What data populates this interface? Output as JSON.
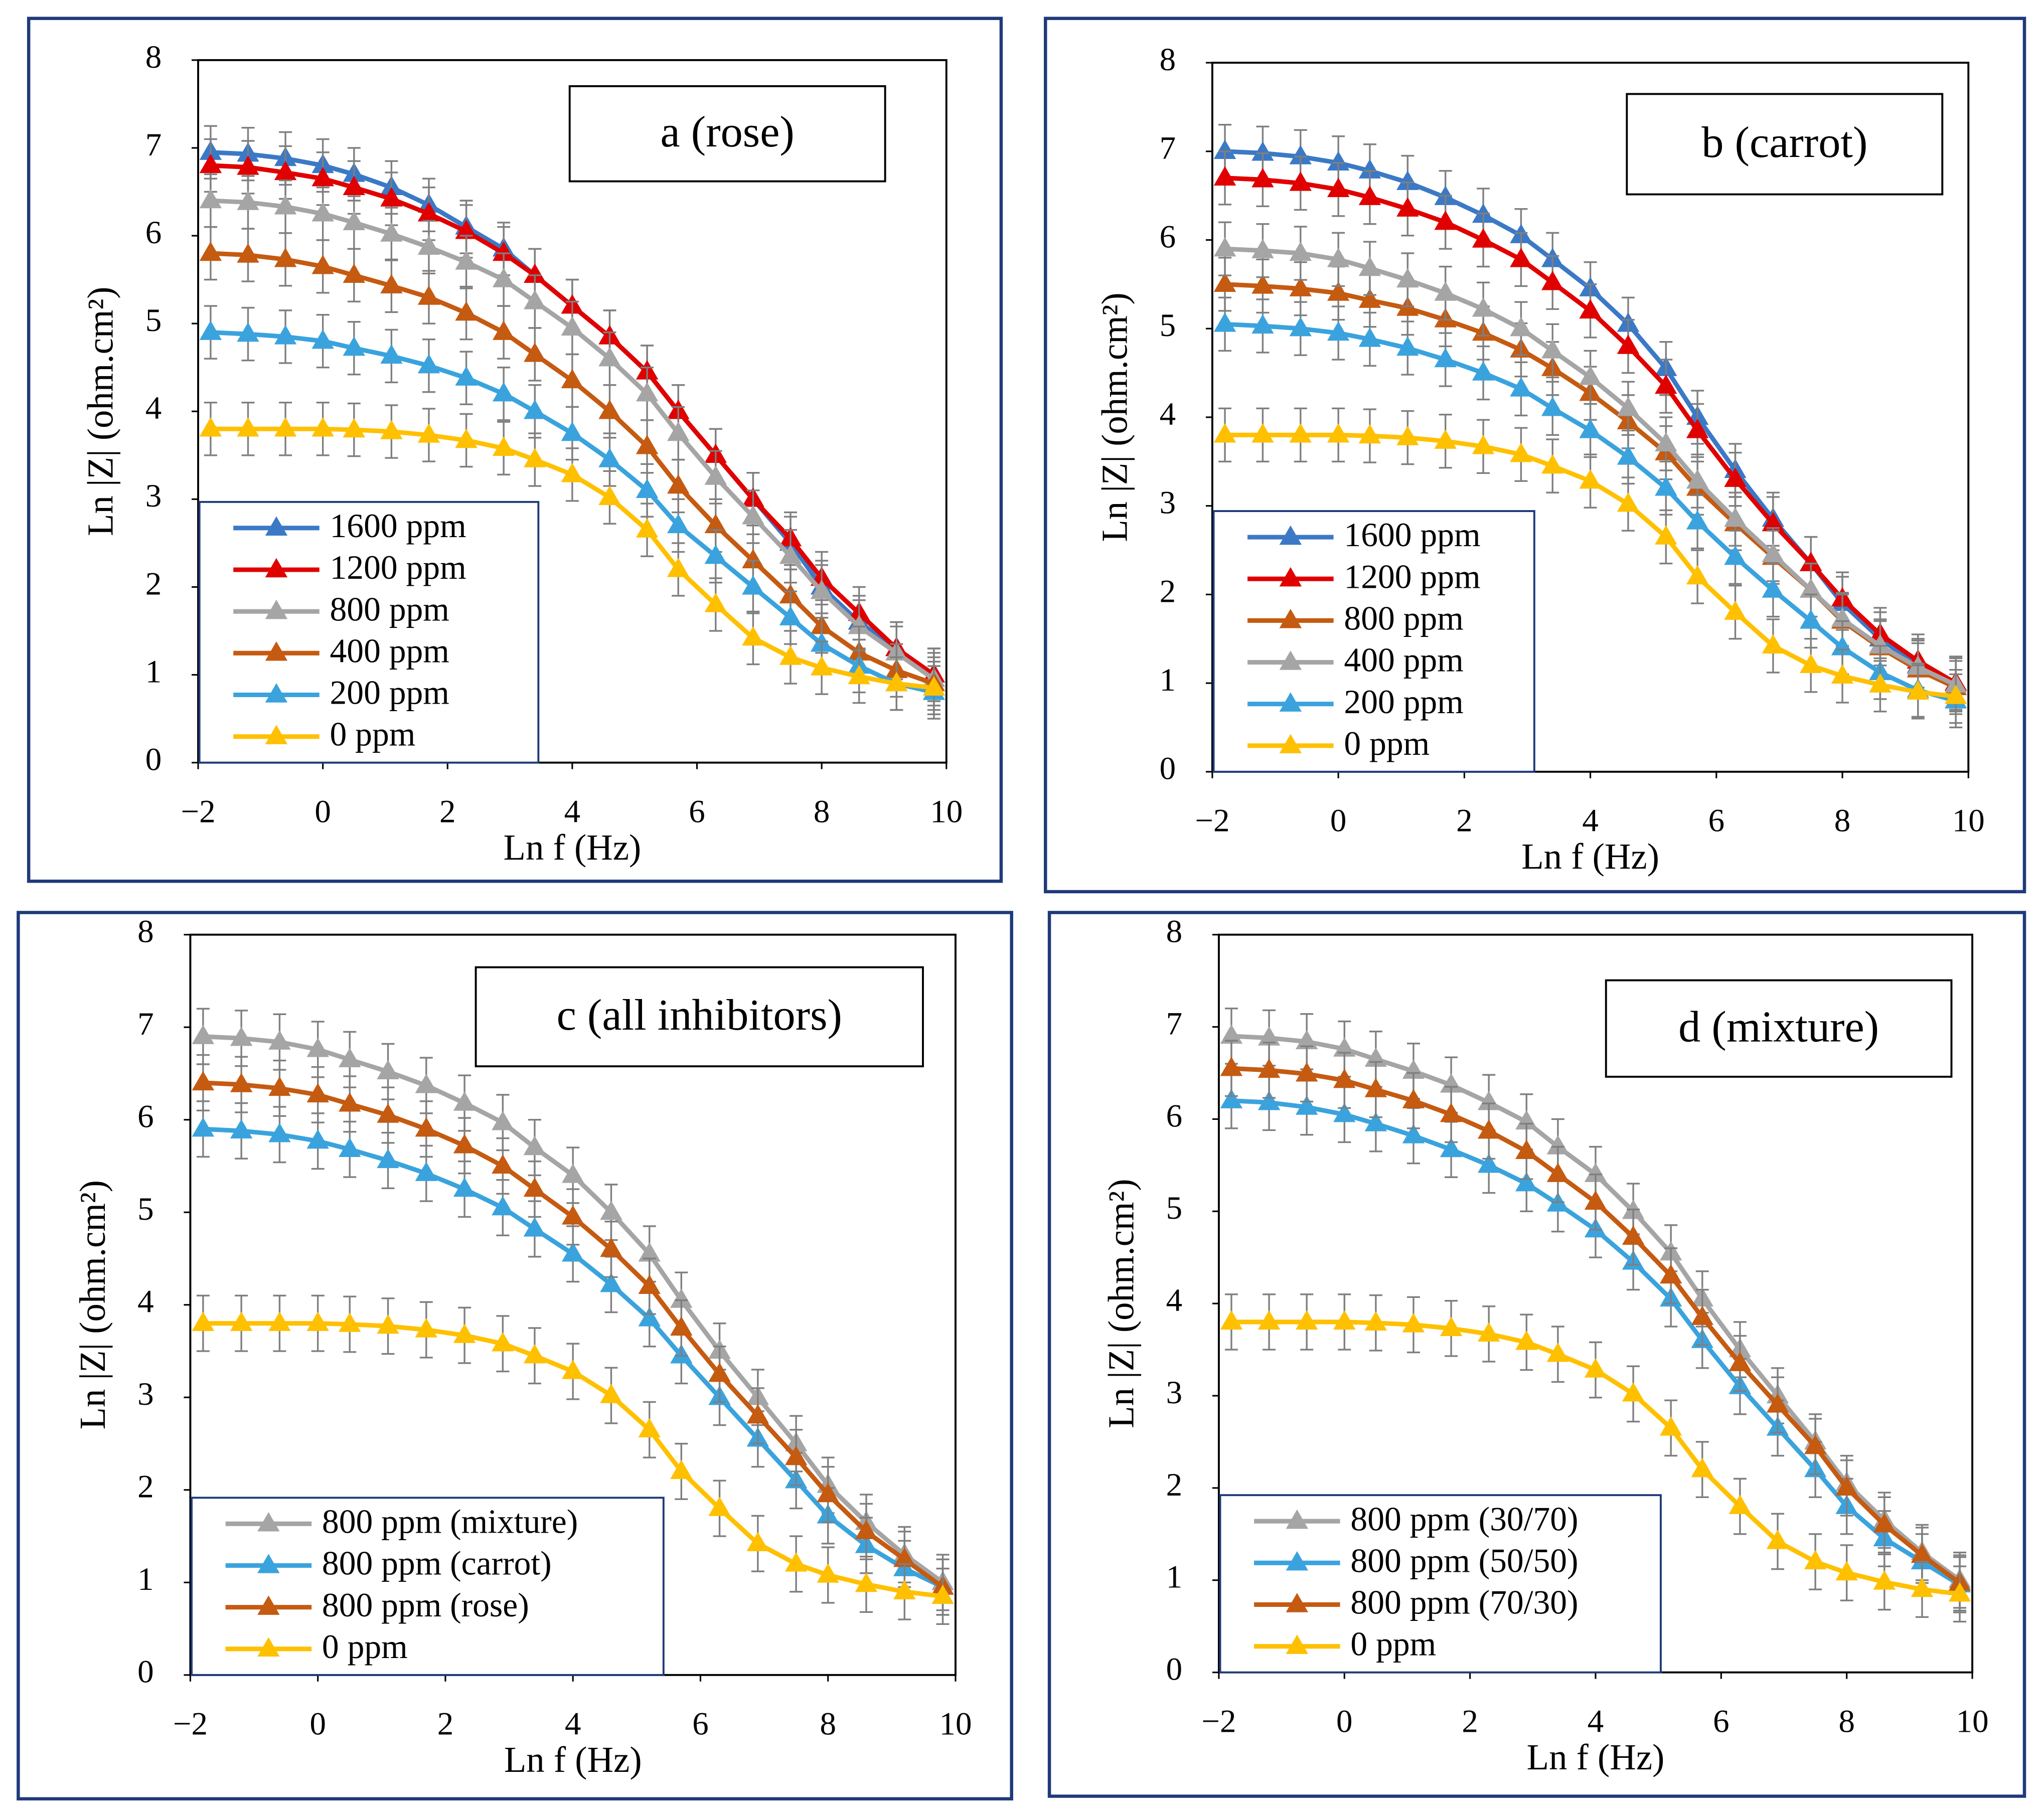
{
  "chart_data": [
    {
      "type": "line",
      "annotation": "a (rose)",
      "xlabel": "Ln f (Hz)",
      "ylabel": "Ln |Z| (ohm.cm²)",
      "xlim": [
        -2,
        10
      ],
      "ylim": [
        0,
        8
      ],
      "xticks": [
        {
          "value": -2,
          "label": "−2"
        },
        0,
        2,
        4,
        6,
        8,
        10
      ],
      "yticks": [
        0,
        1,
        2,
        3,
        4,
        5,
        6,
        7,
        8
      ],
      "legend": "lower left",
      "error": 0.3,
      "x": [
        -1.8,
        -1.2,
        -0.6,
        0.0,
        0.5,
        1.1,
        1.7,
        2.3,
        2.9,
        3.4,
        4.0,
        4.6,
        5.2,
        5.7,
        6.3,
        6.9,
        7.5,
        8.0,
        8.6,
        9.2,
        9.8
      ],
      "series": [
        {
          "name": "1600 ppm",
          "color": "#3b79c6",
          "values": [
            6.95,
            6.93,
            6.88,
            6.8,
            6.7,
            6.55,
            6.35,
            6.1,
            5.85,
            5.55,
            5.2,
            4.85,
            4.45,
            4.0,
            3.5,
            3.0,
            2.5,
            2.0,
            1.6,
            1.3,
            1.0
          ]
        },
        {
          "name": "1200 ppm",
          "color": "#e00000",
          "values": [
            6.8,
            6.78,
            6.72,
            6.65,
            6.55,
            6.42,
            6.25,
            6.05,
            5.8,
            5.55,
            5.2,
            4.85,
            4.45,
            4.0,
            3.5,
            3.0,
            2.55,
            2.1,
            1.7,
            1.3,
            1.0
          ]
        },
        {
          "name": "800 ppm",
          "color": "#a5a5a5",
          "values": [
            6.4,
            6.38,
            6.33,
            6.25,
            6.15,
            6.02,
            5.87,
            5.7,
            5.5,
            5.25,
            4.95,
            4.6,
            4.2,
            3.75,
            3.25,
            2.8,
            2.35,
            1.95,
            1.55,
            1.25,
            0.95
          ]
        },
        {
          "name": "400 ppm",
          "color": "#c55a11",
          "values": [
            5.8,
            5.78,
            5.73,
            5.65,
            5.55,
            5.43,
            5.3,
            5.12,
            4.9,
            4.65,
            4.35,
            4.0,
            3.6,
            3.15,
            2.7,
            2.3,
            1.9,
            1.55,
            1.25,
            1.05,
            0.9
          ]
        },
        {
          "name": "200 ppm",
          "color": "#3aa3dd",
          "values": [
            4.9,
            4.88,
            4.85,
            4.8,
            4.72,
            4.63,
            4.52,
            4.38,
            4.2,
            4.0,
            3.75,
            3.45,
            3.1,
            2.7,
            2.35,
            2.0,
            1.65,
            1.35,
            1.1,
            0.9,
            0.8
          ]
        },
        {
          "name": "0 ppm",
          "color": "#ffc000",
          "values": [
            3.8,
            3.8,
            3.8,
            3.8,
            3.79,
            3.77,
            3.73,
            3.67,
            3.58,
            3.45,
            3.28,
            3.02,
            2.65,
            2.2,
            1.8,
            1.42,
            1.2,
            1.08,
            0.98,
            0.9,
            0.85
          ]
        }
      ]
    },
    {
      "type": "line",
      "annotation": "b (carrot)",
      "xlabel": "Ln f (Hz)",
      "ylabel": "Ln |Z| (ohm.cm²)",
      "xlim": [
        -2,
        10
      ],
      "ylim": [
        0,
        8
      ],
      "xticks": [
        {
          "value": -2,
          "label": "−2"
        },
        0,
        2,
        4,
        6,
        8,
        10
      ],
      "yticks": [
        0,
        1,
        2,
        3,
        4,
        5,
        6,
        7,
        8
      ],
      "legend": "lower left",
      "error": 0.3,
      "x": [
        -1.8,
        -1.2,
        -0.6,
        0.0,
        0.5,
        1.1,
        1.7,
        2.3,
        2.9,
        3.4,
        4.0,
        4.6,
        5.2,
        5.7,
        6.3,
        6.9,
        7.5,
        8.0,
        8.6,
        9.2,
        9.8
      ],
      "series": [
        {
          "name": "1600 ppm",
          "color": "#3b79c6",
          "values": [
            7.0,
            6.98,
            6.94,
            6.87,
            6.78,
            6.65,
            6.48,
            6.28,
            6.05,
            5.78,
            5.45,
            5.05,
            4.55,
            4.0,
            3.4,
            2.85,
            2.35,
            1.9,
            1.5,
            1.2,
            1.0
          ]
        },
        {
          "name": "1200 ppm",
          "color": "#e00000",
          "values": [
            6.7,
            6.68,
            6.64,
            6.57,
            6.48,
            6.35,
            6.2,
            6.0,
            5.78,
            5.52,
            5.2,
            4.8,
            4.35,
            3.85,
            3.3,
            2.8,
            2.35,
            1.95,
            1.55,
            1.25,
            1.0
          ]
        },
        {
          "name": "800 ppm",
          "color": "#c55a11",
          "values": [
            5.5,
            5.48,
            5.45,
            5.4,
            5.32,
            5.23,
            5.1,
            4.95,
            4.76,
            4.55,
            4.27,
            3.95,
            3.6,
            3.2,
            2.8,
            2.42,
            2.05,
            1.7,
            1.4,
            1.15,
            0.95
          ]
        },
        {
          "name": "400 ppm",
          "color": "#a5a5a5",
          "values": [
            5.9,
            5.88,
            5.85,
            5.78,
            5.68,
            5.55,
            5.4,
            5.22,
            5.0,
            4.75,
            4.45,
            4.1,
            3.7,
            3.28,
            2.85,
            2.45,
            2.05,
            1.72,
            1.42,
            1.18,
            0.98
          ]
        },
        {
          "name": "200 ppm",
          "color": "#3aa3dd",
          "values": [
            5.05,
            5.03,
            5.0,
            4.95,
            4.88,
            4.78,
            4.65,
            4.5,
            4.32,
            4.1,
            3.85,
            3.55,
            3.2,
            2.82,
            2.42,
            2.05,
            1.7,
            1.4,
            1.12,
            0.92,
            0.8
          ]
        },
        {
          "name": "0 ppm",
          "color": "#ffc000",
          "values": [
            3.8,
            3.8,
            3.8,
            3.8,
            3.79,
            3.77,
            3.73,
            3.67,
            3.58,
            3.45,
            3.28,
            3.02,
            2.65,
            2.2,
            1.8,
            1.42,
            1.2,
            1.08,
            0.98,
            0.9,
            0.85
          ]
        }
      ]
    },
    {
      "type": "line",
      "annotation": "c (all inhibitors)",
      "xlabel": "Ln f (Hz)",
      "ylabel": "Ln |Z| (ohm.cm²)",
      "xlim": [
        -2,
        10
      ],
      "ylim": [
        0,
        8
      ],
      "xticks": [
        {
          "value": -2,
          "label": "−2"
        },
        0,
        2,
        4,
        6,
        8,
        10
      ],
      "yticks": [
        0,
        1,
        2,
        3,
        4,
        5,
        6,
        7,
        8
      ],
      "legend": "lower left",
      "error": 0.3,
      "x": [
        -1.8,
        -1.2,
        -0.6,
        0.0,
        0.5,
        1.1,
        1.7,
        2.3,
        2.9,
        3.4,
        4.0,
        4.6,
        5.2,
        5.7,
        6.3,
        6.9,
        7.5,
        8.0,
        8.6,
        9.2,
        9.8
      ],
      "series": [
        {
          "name": "800 ppm (mixture)",
          "color": "#a5a5a5",
          "values": [
            6.9,
            6.88,
            6.84,
            6.76,
            6.65,
            6.52,
            6.37,
            6.18,
            5.97,
            5.7,
            5.4,
            5.0,
            4.55,
            4.05,
            3.5,
            3.0,
            2.5,
            2.05,
            1.65,
            1.3,
            1.0
          ]
        },
        {
          "name": "800 ppm (carrot)",
          "color": "#3aa3dd",
          "values": [
            5.9,
            5.88,
            5.84,
            5.77,
            5.68,
            5.56,
            5.42,
            5.25,
            5.05,
            4.82,
            4.55,
            4.22,
            3.85,
            3.45,
            3.0,
            2.55,
            2.1,
            1.72,
            1.4,
            1.15,
            0.95
          ]
        },
        {
          "name": "800 ppm (rose)",
          "color": "#c55a11",
          "values": [
            6.4,
            6.38,
            6.34,
            6.27,
            6.17,
            6.05,
            5.9,
            5.72,
            5.5,
            5.25,
            4.95,
            4.6,
            4.2,
            3.75,
            3.25,
            2.8,
            2.35,
            1.95,
            1.55,
            1.25,
            0.95
          ]
        },
        {
          "name": "0 ppm",
          "color": "#ffc000",
          "values": [
            3.8,
            3.8,
            3.8,
            3.8,
            3.79,
            3.77,
            3.73,
            3.67,
            3.58,
            3.45,
            3.28,
            3.02,
            2.65,
            2.2,
            1.8,
            1.42,
            1.2,
            1.08,
            0.98,
            0.9,
            0.85
          ]
        }
      ]
    },
    {
      "type": "line",
      "annotation": "d (mixture)",
      "xlabel": "Ln f (Hz)",
      "ylabel": "Ln |Z| (ohm.cm²)",
      "xlim": [
        -2,
        10
      ],
      "ylim": [
        0,
        8
      ],
      "xticks": [
        {
          "value": -2,
          "label": "−2"
        },
        0,
        2,
        4,
        6,
        8,
        10
      ],
      "yticks": [
        0,
        1,
        2,
        3,
        4,
        5,
        6,
        7,
        8
      ],
      "legend": "lower left",
      "error": 0.3,
      "x": [
        -1.8,
        -1.2,
        -0.6,
        0.0,
        0.5,
        1.1,
        1.7,
        2.3,
        2.9,
        3.4,
        4.0,
        4.6,
        5.2,
        5.7,
        6.3,
        6.9,
        7.5,
        8.0,
        8.6,
        9.2,
        9.8
      ],
      "series": [
        {
          "name": "800 ppm (30/70)",
          "color": "#a5a5a5",
          "values": [
            6.9,
            6.88,
            6.84,
            6.76,
            6.65,
            6.52,
            6.37,
            6.18,
            5.97,
            5.7,
            5.4,
            5.0,
            4.55,
            4.05,
            3.5,
            3.0,
            2.5,
            2.05,
            1.65,
            1.3,
            1.0
          ]
        },
        {
          "name": "800 ppm (50/50)",
          "color": "#3aa3dd",
          "values": [
            6.2,
            6.18,
            6.13,
            6.05,
            5.95,
            5.82,
            5.67,
            5.5,
            5.3,
            5.08,
            4.8,
            4.45,
            4.05,
            3.6,
            3.1,
            2.65,
            2.2,
            1.8,
            1.45,
            1.2,
            0.95
          ]
        },
        {
          "name": "800 ppm (70/30)",
          "color": "#c55a11",
          "values": [
            6.55,
            6.53,
            6.49,
            6.42,
            6.32,
            6.2,
            6.05,
            5.87,
            5.65,
            5.4,
            5.1,
            4.72,
            4.3,
            3.85,
            3.35,
            2.9,
            2.45,
            2.0,
            1.6,
            1.27,
            0.97
          ]
        },
        {
          "name": "0 ppm",
          "color": "#ffc000",
          "values": [
            3.8,
            3.8,
            3.8,
            3.8,
            3.79,
            3.77,
            3.73,
            3.67,
            3.58,
            3.45,
            3.28,
            3.02,
            2.65,
            2.2,
            1.8,
            1.42,
            1.2,
            1.08,
            0.98,
            0.9,
            0.85
          ]
        }
      ]
    }
  ]
}
